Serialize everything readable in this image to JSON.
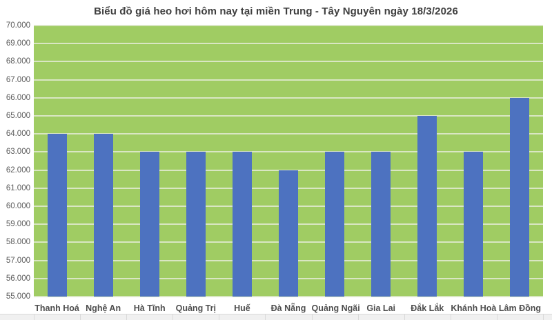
{
  "title": "Biểu đồ giá heo hơi hôm nay tại miền Trung - Tây Nguyên ngày 18/3/2026",
  "chart_data": {
    "type": "bar",
    "categories": [
      "Thanh Hoá",
      "Nghệ An",
      "Hà Tĩnh",
      "Quảng Trị",
      "Huế",
      "Đà Nẵng",
      "Quảng Ngãi",
      "Gia Lai",
      "Đắk Lắk",
      "Khánh Hoà",
      "Lâm Đồng"
    ],
    "values": [
      64000,
      64000,
      63000,
      63000,
      63000,
      62000,
      63000,
      63000,
      65000,
      63000,
      66000
    ],
    "title": "Biểu đồ giá heo hơi hôm nay tại miền Trung - Tây Nguyên ngày 18/3/2026",
    "xlabel": "",
    "ylabel": "",
    "ylim": [
      55000,
      70000
    ],
    "ytick_step": 1000,
    "y_tick_labels": [
      "70.000",
      "69.000",
      "68.000",
      "67.000",
      "66.000",
      "65.000",
      "64.000",
      "63.000",
      "62.000",
      "61.000",
      "60.000",
      "59.000",
      "58.000",
      "57.000",
      "56.000",
      "55.000"
    ],
    "grid": true,
    "legend": false,
    "colors": {
      "plot_background": "#a0cc63",
      "bar": "#4d72c0",
      "gridline": "#d9e6c3",
      "title_text": "#3f3f3f",
      "axis_text": "#595959"
    }
  }
}
